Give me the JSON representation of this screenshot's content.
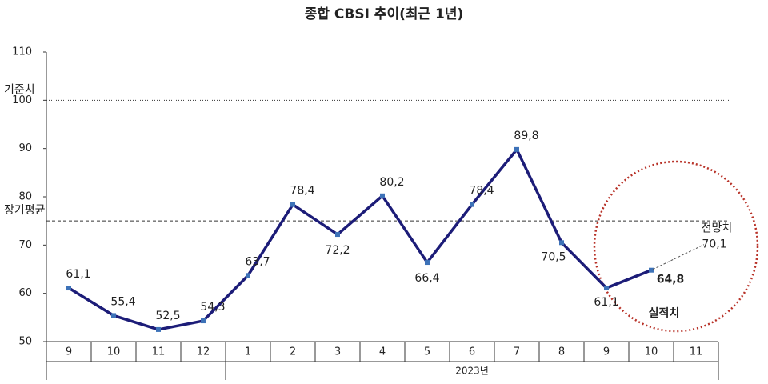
{
  "chart_data": {
    "type": "line",
    "title": "종합 CBSI 추이(최근 1년)",
    "categories": [
      "9",
      "10",
      "11",
      "12",
      "1",
      "2",
      "3",
      "4",
      "5",
      "6",
      "7",
      "8",
      "9",
      "10",
      "11"
    ],
    "groups": [
      {
        "label": null,
        "span": 4
      },
      {
        "label": "2023년",
        "span": 11
      }
    ],
    "values": [
      61.1,
      55.4,
      52.5,
      54.3,
      63.7,
      78.4,
      72.2,
      80.2,
      66.4,
      78.4,
      89.8,
      70.5,
      61.1,
      64.8,
      null
    ],
    "value_labels": [
      "61,1",
      "55,4",
      "52,5",
      "54,3",
      "63,7",
      "78,4",
      "72,2",
      "80,2",
      "66,4",
      "78,4",
      "89,8",
      "70,5",
      "61,1",
      "64,8",
      null
    ],
    "color": "#1c1c78",
    "marker_color": "#3d72b8",
    "ylim": [
      50,
      110
    ],
    "yticks": [
      50,
      60,
      70,
      80,
      90,
      100,
      110
    ],
    "reference_lines": [
      {
        "label": "기준치",
        "value": 100,
        "style": "dotted"
      },
      {
        "label": "장기평균",
        "value": 75,
        "style": "dashed"
      }
    ],
    "forecast": {
      "label": "전망치",
      "value": 70.1,
      "value_label": "70,1"
    },
    "annotation": "실적치"
  }
}
